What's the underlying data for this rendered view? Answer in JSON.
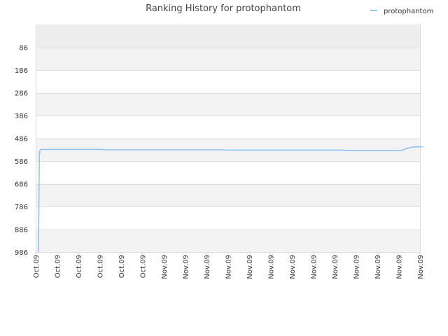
{
  "colors": {
    "series": "#8ec3f2",
    "band_shaded": "#f3f3f3",
    "band_top": "#ededed",
    "grid": "#dddddd",
    "text": "#444444",
    "tick_text": "#333333"
  },
  "chart_data": {
    "type": "line",
    "title": "Ranking History for protophantom",
    "xlabel": "",
    "ylabel": "",
    "y_inverted": true,
    "ylim": [
      986,
      -14
    ],
    "yticks": [
      86,
      186,
      286,
      386,
      486,
      586,
      686,
      786,
      886,
      986
    ],
    "xtick_labels": [
      "Oct.09",
      "Oct.09",
      "Oct.09",
      "Oct.09",
      "Oct.09",
      "Oct.09",
      "Nov.09",
      "Nov.09",
      "Nov.09",
      "Nov.09",
      "Nov.09",
      "Nov.09",
      "Nov.09",
      "Nov.09",
      "Nov.09",
      "Nov.09",
      "Nov.09",
      "Nov.09",
      "Nov.09"
    ],
    "legend": {
      "position": "top-right"
    },
    "grid": true,
    "series": [
      {
        "name": "protophantom",
        "x": [
          0.0,
          0.04,
          0.07,
          0.1,
          0.2,
          3.0,
          3.05,
          8.7,
          8.75,
          14.3,
          14.35,
          17.0,
          17.2,
          17.5,
          17.9,
          18.0
        ],
        "values": [
          986,
          560,
          540,
          535,
          535,
          535,
          537,
          537,
          538,
          538,
          540,
          540,
          532,
          525,
          523,
          523
        ]
      }
    ]
  }
}
